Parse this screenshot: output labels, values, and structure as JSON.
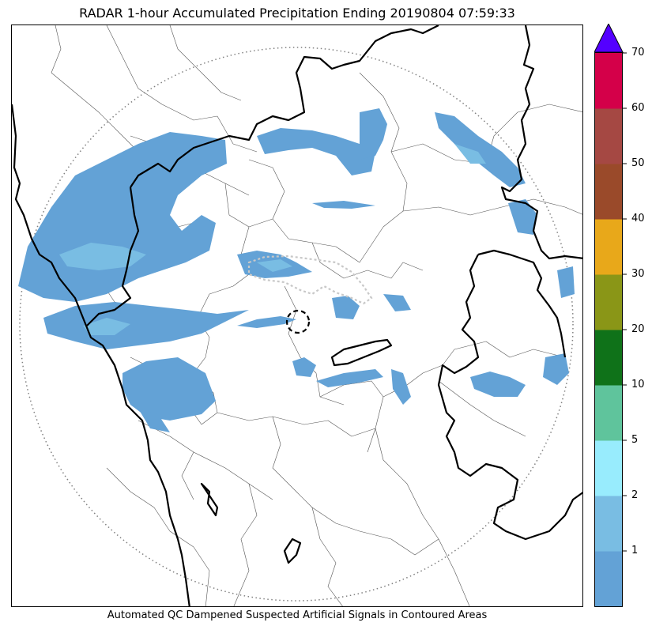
{
  "title": "RADAR 1-hour Accumulated Precipitation Ending 20190804 07:59:33",
  "caption": "Automated QC Dampened Suspected Artificial Signals in Contoured Areas",
  "colorbar": {
    "ticks": [
      "1",
      "2",
      "5",
      "10",
      "20",
      "30",
      "40",
      "50",
      "60",
      "70"
    ],
    "bins": [
      {
        "label": "0-1",
        "color": "#63a2d6"
      },
      {
        "label": "1-2",
        "color": "#79bde3"
      },
      {
        "label": "2-5",
        "color": "#98ecfd"
      },
      {
        "label": "5-10",
        "color": "#5fc49c"
      },
      {
        "label": "10-20",
        "color": "#0f7219"
      },
      {
        "label": "20-30",
        "color": "#8a9617"
      },
      {
        "label": "30-40",
        "color": "#e8a81a"
      },
      {
        "label": "40-50",
        "color": "#9a4a2a"
      },
      {
        "label": "50-60",
        "color": "#a54843"
      },
      {
        "label": "60-70",
        "color": "#d40049"
      }
    ],
    "extend_color": "#5400ff"
  },
  "map": {
    "precip_light": "#63a2d6",
    "precip_moderate": "#79bde3",
    "border_color": "#000000",
    "district_color": "#555555",
    "range_ring_color": "#808080"
  }
}
